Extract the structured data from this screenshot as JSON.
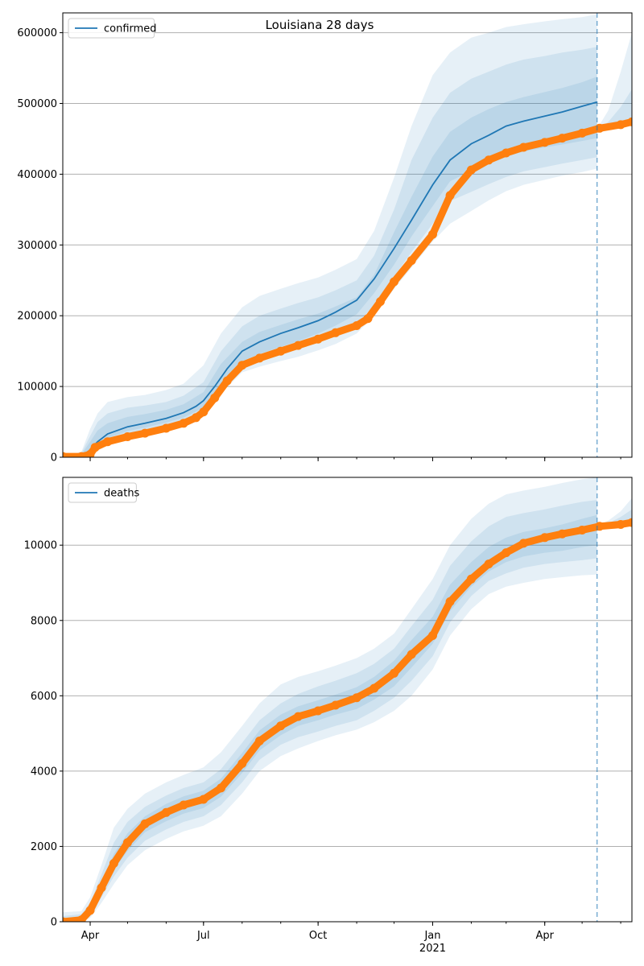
{
  "title": "Louisiana 28 days",
  "colors": {
    "model": "#1f77b4",
    "observed": "#ff7f0e",
    "band": "#1f77b4",
    "grid": "#b0b0b0",
    "cutoff": "#1f77b4"
  },
  "x_axis": {
    "domain": [
      "2020-03-10",
      "2021-06-10"
    ],
    "ticks": [
      {
        "date": "2020-04-01",
        "label": "Apr",
        "sublabel": ""
      },
      {
        "date": "2020-07-01",
        "label": "Jul",
        "sublabel": ""
      },
      {
        "date": "2020-10-01",
        "label": "Oct",
        "sublabel": ""
      },
      {
        "date": "2021-01-01",
        "label": "Jan",
        "sublabel": "2021"
      },
      {
        "date": "2021-04-01",
        "label": "Apr",
        "sublabel": ""
      }
    ],
    "cutoff_date": "2021-05-13"
  },
  "chart_data": [
    {
      "type": "line",
      "legend": "confirmed",
      "legend_position": "top-left",
      "grid": "horizontal",
      "ylim": [
        0,
        628000
      ],
      "yticks": [
        0,
        100000,
        200000,
        300000,
        400000,
        500000,
        600000
      ],
      "ytick_labels": [
        "0",
        "100000",
        "200000",
        "300000",
        "400000",
        "500000",
        "600000"
      ],
      "model": {
        "name": "confirmed",
        "x": [
          "2020-03-10",
          "2020-03-25",
          "2020-03-31",
          "2020-04-07",
          "2020-04-15",
          "2020-05-01",
          "2020-05-15",
          "2020-06-01",
          "2020-06-15",
          "2020-06-25",
          "2020-07-01",
          "2020-07-10",
          "2020-07-20",
          "2020-08-01",
          "2020-08-15",
          "2020-09-01",
          "2020-09-15",
          "2020-10-01",
          "2020-10-15",
          "2020-11-01",
          "2020-11-15",
          "2020-12-01",
          "2020-12-15",
          "2021-01-01",
          "2021-01-15",
          "2021-02-01",
          "2021-02-15",
          "2021-03-01",
          "2021-03-15",
          "2021-04-01",
          "2021-04-15",
          "2021-05-01",
          "2021-05-13"
        ],
        "y": [
          0,
          2000,
          9000,
          22000,
          33000,
          43000,
          48000,
          55000,
          63000,
          72000,
          80000,
          100000,
          125000,
          150000,
          163000,
          175000,
          183000,
          193000,
          205000,
          222000,
          252000,
          295000,
          335000,
          385000,
          420000,
          443000,
          455000,
          468000,
          475000,
          482000,
          488000,
          496000,
          502000
        ]
      },
      "observed": {
        "x": [
          "2020-03-10",
          "2020-03-25",
          "2020-04-01",
          "2020-04-05",
          "2020-04-15",
          "2020-05-01",
          "2020-05-15",
          "2020-06-01",
          "2020-06-15",
          "2020-06-25",
          "2020-07-01",
          "2020-07-10",
          "2020-07-20",
          "2020-08-01",
          "2020-08-15",
          "2020-09-01",
          "2020-09-15",
          "2020-10-01",
          "2020-10-15",
          "2020-11-01",
          "2020-11-10",
          "2020-11-20",
          "2020-12-01",
          "2020-12-15",
          "2021-01-01",
          "2021-01-15",
          "2021-02-01",
          "2021-02-15",
          "2021-03-01",
          "2021-03-15",
          "2021-04-01",
          "2021-04-15",
          "2021-05-01",
          "2021-05-15",
          "2021-06-01",
          "2021-06-10"
        ],
        "y": [
          1000,
          1000,
          4000,
          14000,
          22000,
          29000,
          34000,
          41000,
          48000,
          56000,
          64000,
          84000,
          108000,
          130000,
          140000,
          150000,
          158000,
          167000,
          176000,
          186000,
          196000,
          220000,
          248000,
          278000,
          315000,
          370000,
          406000,
          420000,
          430000,
          438000,
          445000,
          451000,
          458000,
          465000,
          470000,
          474000
        ]
      },
      "bands": {
        "x": [
          "2020-03-10",
          "2020-03-25",
          "2020-04-01",
          "2020-04-07",
          "2020-04-15",
          "2020-05-01",
          "2020-05-15",
          "2020-06-01",
          "2020-06-15",
          "2020-07-01",
          "2020-07-15",
          "2020-08-01",
          "2020-08-15",
          "2020-09-01",
          "2020-09-15",
          "2020-10-01",
          "2020-10-15",
          "2020-11-01",
          "2020-11-15",
          "2020-12-01",
          "2020-12-15",
          "2021-01-01",
          "2021-01-15",
          "2021-02-01",
          "2021-02-15",
          "2021-03-01",
          "2021-03-15",
          "2021-04-01",
          "2021-04-15",
          "2021-05-01",
          "2021-05-13"
        ],
        "levels": [
          {
            "lower": [
              0,
              0,
              0,
              12000,
              20000,
              29000,
              33000,
              38000,
              44000,
              58000,
              90000,
              120000,
              128000,
              136000,
              142000,
              151000,
              160000,
              175000,
              200000,
              238000,
              268000,
              305000,
              330000,
              348000,
              363000,
              376000,
              385000,
              392000,
              398000,
              403000,
              408000
            ],
            "upper": [
              0,
              8000,
              40000,
              62000,
              78000,
              85000,
              88000,
              95000,
              104000,
              130000,
              175000,
              212000,
              228000,
              238000,
              246000,
              254000,
              265000,
              280000,
              320000,
              395000,
              468000,
              540000,
              572000,
              593000,
              600000,
              608000,
              612000,
              616000,
              619000,
              622000,
              626000
            ]
          },
          {
            "lower": [
              0,
              0,
              3000,
              15000,
              24000,
              33000,
              37000,
              43000,
              50000,
              64000,
              96000,
              128000,
              137000,
              146000,
              153000,
              163000,
              173000,
              188000,
              215000,
              255000,
              290000,
              330000,
              362000,
              375000,
              386000,
              396000,
              404000,
              410000,
              415000,
              420000,
              424000
            ],
            "upper": [
              0,
              6000,
              30000,
              50000,
              62000,
              70000,
              73000,
              78000,
              87000,
              106000,
              150000,
              185000,
              200000,
              210000,
              218000,
              226000,
              236000,
              250000,
              285000,
              350000,
              420000,
              480000,
              515000,
              535000,
              545000,
              555000,
              562000,
              567000,
              572000,
              576000,
              580000
            ],
            "upper_unused": []
          },
          {
            "lower": [
              0,
              0,
              6000,
              18000,
              27000,
              37000,
              42000,
              49000,
              56000,
              70000,
              104000,
              136000,
              146000,
              156000,
              164000,
              175000,
              186000,
              202000,
              232000,
              272000,
              312000,
              355000,
              390000,
              405000,
              415000,
              425000,
              432000,
              438000,
              442000,
              447000,
              451000
            ],
            "upper": [
              0,
              4000,
              22000,
              38000,
              48000,
              57000,
              61000,
              67000,
              75000,
              92000,
              132000,
              163000,
              177000,
              187000,
              195000,
              203000,
              213000,
              226000,
              258000,
              318000,
              368000,
              425000,
              460000,
              480000,
              492000,
              502000,
              509000,
              516000,
              522000,
              530000,
              538000
            ]
          }
        ]
      },
      "post_bands": {
        "x": [
          "2021-05-13",
          "2021-05-22",
          "2021-06-01",
          "2021-06-10"
        ],
        "levels": [
          {
            "lower": [
              458000,
              462000,
              466000,
              470000
            ],
            "upper": [
              464000,
              490000,
              545000,
              600000
            ]
          },
          {
            "lower": [
              460000,
              464000,
              468000,
              472000
            ],
            "upper": [
              462000,
              474000,
              495000,
              520000
            ]
          }
        ]
      }
    },
    {
      "type": "line",
      "legend": "deaths",
      "legend_position": "top-left",
      "grid": "horizontal",
      "ylim": [
        0,
        11800
      ],
      "yticks": [
        0,
        2000,
        4000,
        6000,
        8000,
        10000
      ],
      "ytick_labels": [
        "0",
        "2000",
        "4000",
        "6000",
        "8000",
        "10000"
      ],
      "model": {
        "name": "deaths",
        "x": [
          "2020-03-10",
          "2020-03-25",
          "2020-04-01",
          "2020-04-10",
          "2020-04-20",
          "2020-05-01",
          "2020-05-15",
          "2020-06-01",
          "2020-06-15",
          "2020-07-01",
          "2020-07-15",
          "2020-08-01",
          "2020-08-15",
          "2020-09-01",
          "2020-09-15",
          "2020-10-01",
          "2020-10-15",
          "2020-11-01",
          "2020-11-15",
          "2020-12-01",
          "2020-12-15",
          "2021-01-01",
          "2021-01-15",
          "2021-02-01",
          "2021-02-15",
          "2021-03-01",
          "2021-03-15",
          "2021-04-01",
          "2021-04-15",
          "2021-05-01",
          "2021-05-13"
        ],
        "y": [
          0,
          50,
          300,
          900,
          1600,
          2100,
          2600,
          2900,
          3100,
          3250,
          3550,
          4200,
          4800,
          5200,
          5450,
          5600,
          5750,
          5950,
          6200,
          6600,
          7100,
          7700,
          8500,
          9100,
          9500,
          9800,
          10050,
          10200,
          10300,
          10400,
          10450
        ]
      },
      "observed": {
        "x": [
          "2020-03-10",
          "2020-03-25",
          "2020-04-01",
          "2020-04-10",
          "2020-04-20",
          "2020-05-01",
          "2020-05-15",
          "2020-06-01",
          "2020-06-15",
          "2020-07-01",
          "2020-07-15",
          "2020-08-01",
          "2020-08-15",
          "2020-09-01",
          "2020-09-15",
          "2020-10-01",
          "2020-10-15",
          "2020-11-01",
          "2020-11-15",
          "2020-12-01",
          "2020-12-15",
          "2021-01-01",
          "2021-01-15",
          "2021-02-01",
          "2021-02-15",
          "2021-03-01",
          "2021-03-15",
          "2021-04-01",
          "2021-04-15",
          "2021-05-01",
          "2021-05-15",
          "2021-06-01",
          "2021-06-10"
        ],
        "y": [
          0,
          50,
          300,
          900,
          1550,
          2100,
          2600,
          2900,
          3100,
          3250,
          3550,
          4200,
          4800,
          5200,
          5450,
          5600,
          5750,
          5950,
          6200,
          6600,
          7100,
          7600,
          8500,
          9100,
          9500,
          9800,
          10050,
          10200,
          10300,
          10400,
          10500,
          10550,
          10600
        ]
      },
      "bands": {
        "x": [
          "2020-03-10",
          "2020-03-25",
          "2020-04-01",
          "2020-04-10",
          "2020-04-20",
          "2020-05-01",
          "2020-05-15",
          "2020-06-01",
          "2020-06-15",
          "2020-07-01",
          "2020-07-15",
          "2020-08-01",
          "2020-08-15",
          "2020-09-01",
          "2020-09-15",
          "2020-10-01",
          "2020-10-15",
          "2020-11-01",
          "2020-11-15",
          "2020-12-01",
          "2020-12-15",
          "2021-01-01",
          "2021-01-15",
          "2021-02-01",
          "2021-02-15",
          "2021-03-01",
          "2021-03-15",
          "2021-04-01",
          "2021-04-15",
          "2021-05-01",
          "2021-05-13"
        ],
        "levels": [
          {
            "lower": [
              0,
              0,
              100,
              500,
              1000,
              1500,
              1900,
              2200,
              2400,
              2550,
              2800,
              3400,
              4000,
              4400,
              4600,
              4800,
              4950,
              5100,
              5300,
              5600,
              6000,
              6700,
              7600,
              8300,
              8700,
              8900,
              9000,
              9100,
              9150,
              9200,
              9220
            ],
            "upper": [
              250,
              280,
              650,
              1500,
              2500,
              3000,
              3400,
              3700,
              3900,
              4100,
              4500,
              5200,
              5800,
              6300,
              6500,
              6650,
              6800,
              7000,
              7250,
              7650,
              8300,
              9100,
              10000,
              10700,
              11100,
              11350,
              11450,
              11550,
              11650,
              11750,
              11800
            ]
          },
          {
            "lower": [
              0,
              0,
              150,
              650,
              1200,
              1700,
              2150,
              2450,
              2650,
              2800,
              3100,
              3700,
              4300,
              4700,
              4900,
              5050,
              5200,
              5350,
              5600,
              5950,
              6400,
              7050,
              7950,
              8650,
              9050,
              9250,
              9400,
              9500,
              9550,
              9600,
              9650
            ],
            "upper": [
              150,
              200,
              500,
              1250,
              2100,
              2650,
              3050,
              3350,
              3550,
              3700,
              4050,
              4750,
              5350,
              5800,
              6050,
              6250,
              6400,
              6600,
              6850,
              7250,
              7850,
              8550,
              9450,
              10100,
              10500,
              10750,
              10850,
              10950,
              11050,
              11150,
              11200
            ]
          },
          {
            "lower": [
              0,
              0,
              200,
              780,
              1380,
              1880,
              2380,
              2670,
              2870,
              3020,
              3320,
              3950,
              4550,
              4950,
              5200,
              5350,
              5500,
              5650,
              5900,
              6250,
              6750,
              7380,
              8250,
              8900,
              9300,
              9550,
              9700,
              9800,
              9850,
              9950,
              10000
            ],
            "upper": [
              80,
              120,
              420,
              1050,
              1800,
              2350,
              2800,
              3130,
              3330,
              3480,
              3800,
              4480,
              5080,
              5500,
              5720,
              5880,
              6030,
              6230,
              6500,
              6930,
              7480,
              8100,
              8950,
              9550,
              9950,
              10200,
              10350,
              10450,
              10550,
              10700,
              10800
            ]
          }
        ]
      },
      "post_bands": {
        "x": [
          "2021-05-13",
          "2021-05-22",
          "2021-06-01",
          "2021-06-10"
        ],
        "levels": [
          {
            "lower": [
              10400,
              10450,
              10500,
              10550
            ],
            "upper": [
              10500,
              10650,
              10900,
              11250
            ]
          },
          {
            "lower": [
              10430,
              10480,
              10530,
              10580
            ],
            "upper": [
              10470,
              10580,
              10750,
              10950
            ]
          }
        ]
      }
    }
  ]
}
